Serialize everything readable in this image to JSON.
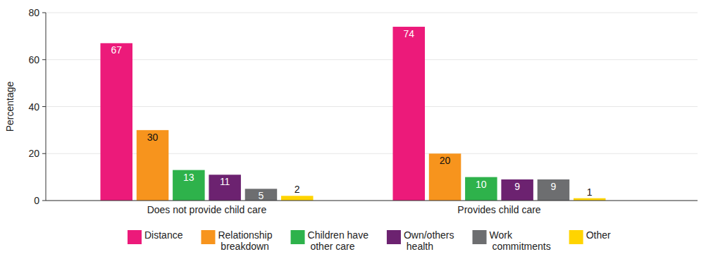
{
  "chart_data": {
    "type": "bar",
    "y_label": "Percentage",
    "categories": [
      "Does not provide child care",
      "Provides child care"
    ],
    "series": [
      {
        "name": "Distance",
        "color": "#ec1a7a",
        "values": [
          67,
          74
        ]
      },
      {
        "name": "Relationship breakdown",
        "color": "#f7941d",
        "values": [
          30,
          20
        ]
      },
      {
        "name": "Children have other care",
        "color": "#2eb24b",
        "values": [
          13,
          10
        ]
      },
      {
        "name": "Own/others health",
        "color": "#6c2270",
        "values": [
          11,
          9
        ]
      },
      {
        "name": "Work commitments",
        "color": "#6d6e70",
        "values": [
          5,
          9
        ]
      },
      {
        "name": "Other",
        "color": "#ffd400",
        "values": [
          2,
          1
        ]
      }
    ],
    "ylim": [
      0,
      80
    ],
    "yticks": [
      0,
      20,
      40,
      60,
      80
    ],
    "grid": true,
    "data_labels": true,
    "legend": "bottom"
  }
}
